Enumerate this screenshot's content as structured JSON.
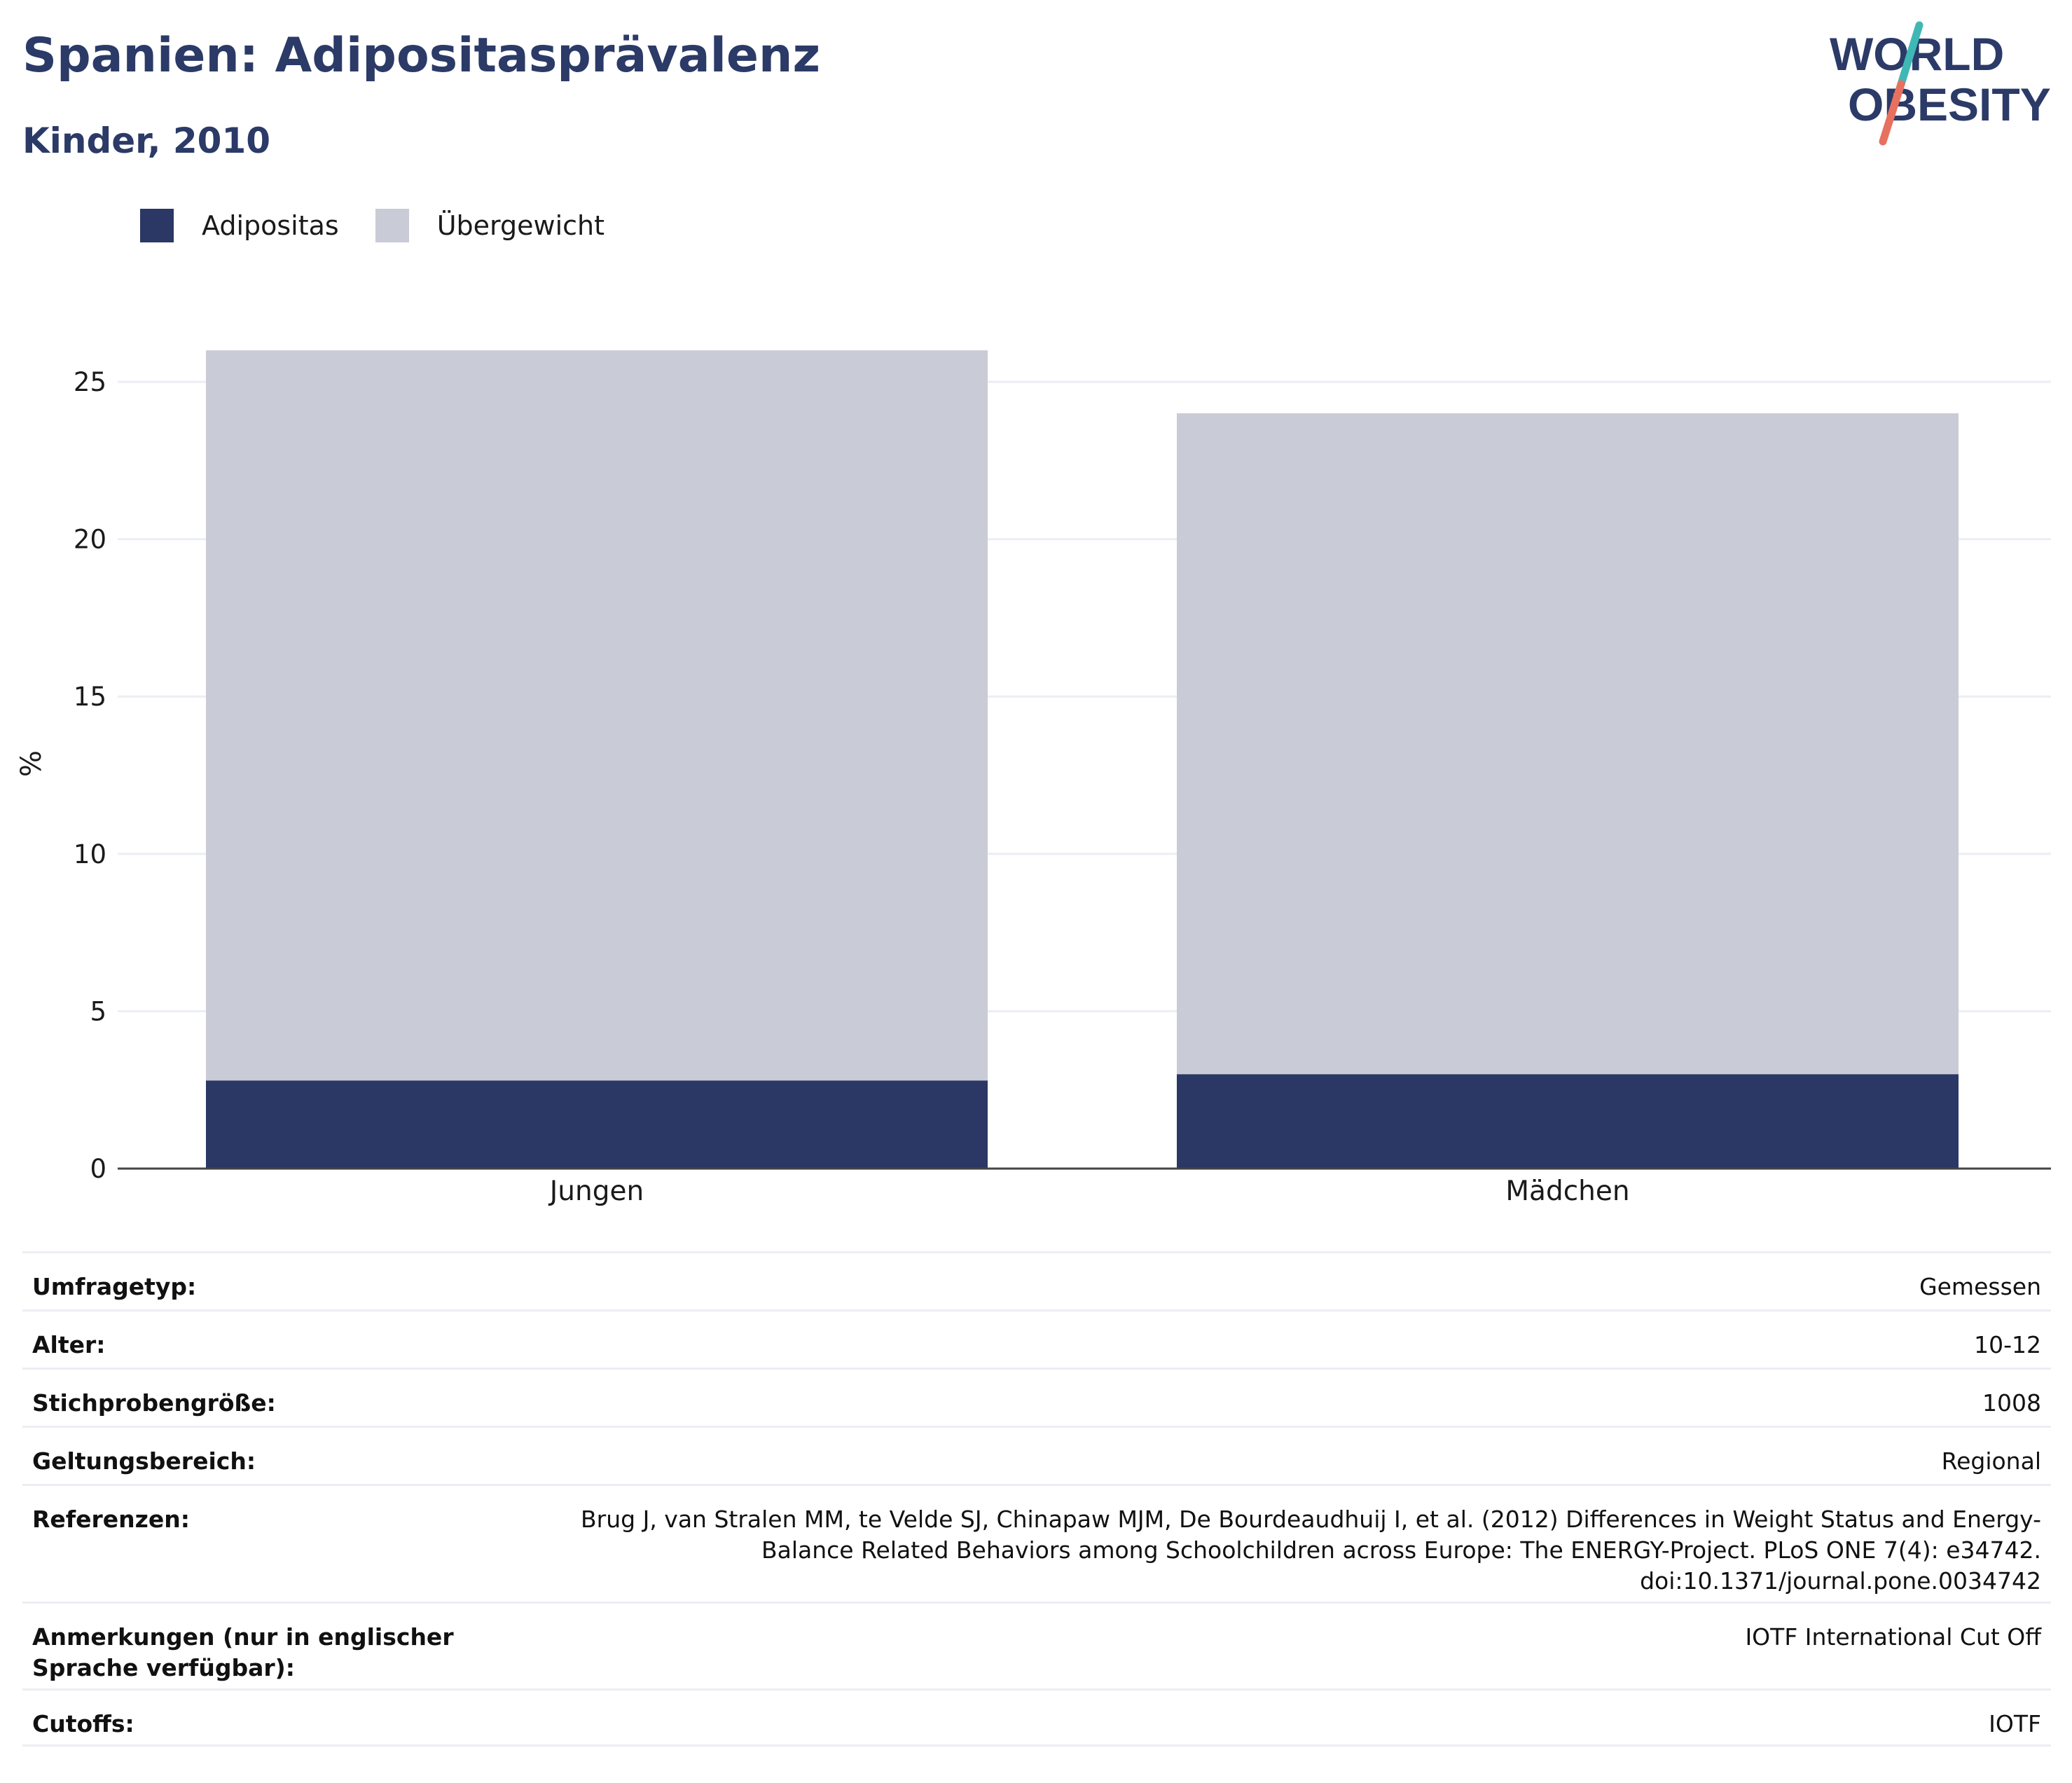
{
  "header": {
    "title": "Spanien: Adipositasprävalenz",
    "subtitle": "Kinder, 2010"
  },
  "logo": {
    "line1": "WORLD",
    "line2": "OBESITY",
    "colors": {
      "text": "#2b3a67",
      "slash_teal": "#3fb8b5",
      "slash_coral": "#e8705f"
    }
  },
  "colors": {
    "adipositas": "#2b3765",
    "uebergewicht": "#c9cbd6",
    "grid": "#eceef4",
    "axis": "#444444",
    "title": "#2b3a67"
  },
  "chart_data": {
    "type": "bar",
    "stacked": true,
    "categories": [
      "Jungen",
      "Mädchen"
    ],
    "series": [
      {
        "name": "Adipositas",
        "values": [
          2.8,
          3.0
        ]
      },
      {
        "name": "Übergewicht",
        "values": [
          23.2,
          21.0
        ]
      }
    ],
    "ylabel": "%",
    "xlabel": "",
    "ylim": [
      0,
      26
    ],
    "yticks": [
      0,
      5,
      10,
      15,
      20,
      25
    ],
    "grid": true,
    "legend_position": "top-left"
  },
  "details": [
    {
      "label": "Umfragetyp:",
      "value": "Gemessen"
    },
    {
      "label": "Alter:",
      "value": "10-12"
    },
    {
      "label": "Stichprobengröße:",
      "value": "1008"
    },
    {
      "label": "Geltungsbereich:",
      "value": "Regional"
    },
    {
      "label": "Referenzen:",
      "value": "Brug J, van Stralen MM, te Velde SJ, Chinapaw MJM, De Bourdeaudhuij I, et al. (2012) Differences in Weight Status and Energy-Balance Related Behaviors among Schoolchildren across Europe: The ENERGY-Project. PLoS ONE 7(4): e34742. doi:10.1371/journal.pone.0034742"
    },
    {
      "label": "Anmerkungen (nur in englischer Sprache verfügbar):",
      "value": "IOTF International Cut Off"
    },
    {
      "label": "Cutoffs:",
      "value": "IOTF"
    }
  ]
}
